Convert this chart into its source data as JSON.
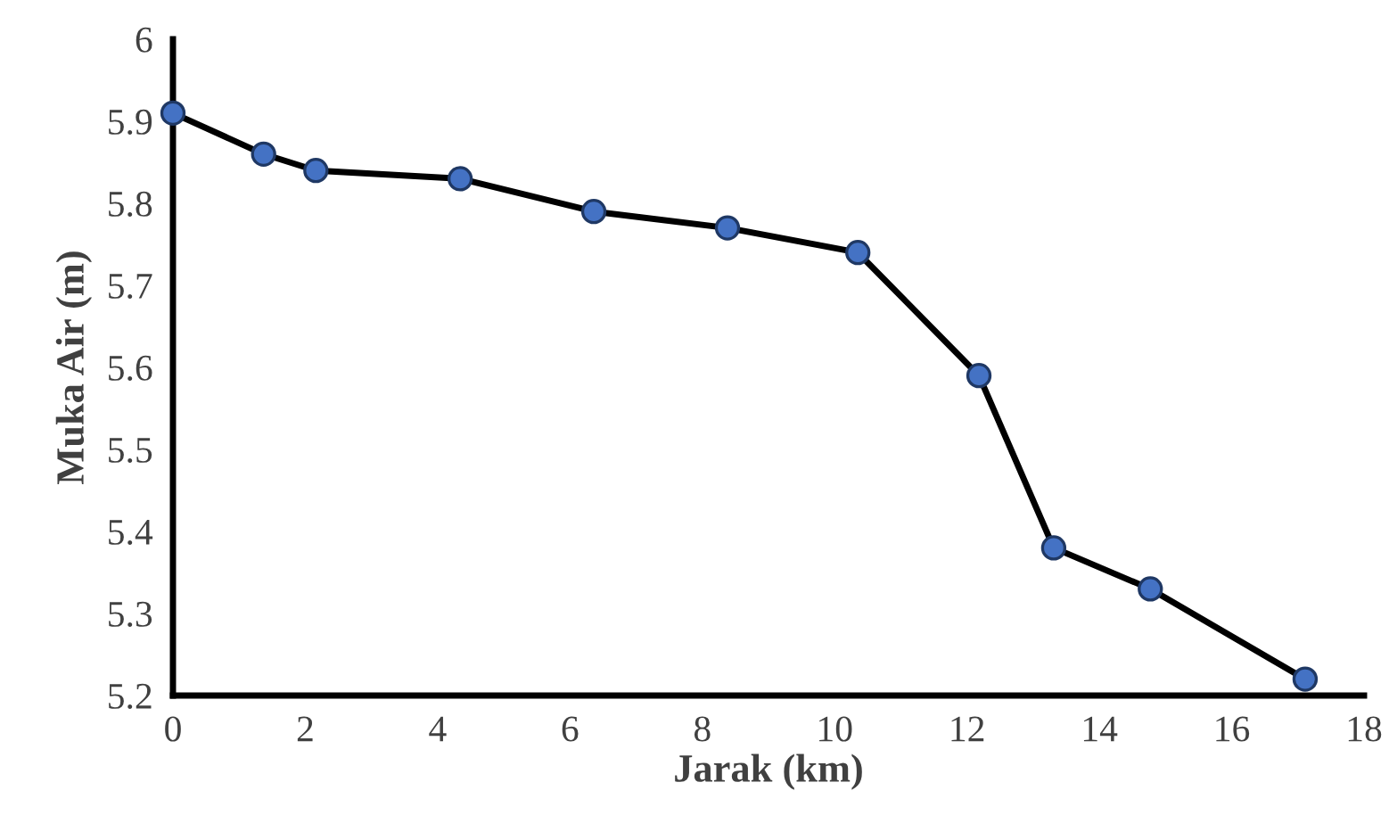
{
  "chart_data": {
    "type": "line",
    "xlabel": "Jarak (km)",
    "ylabel": "Muka Air (m)",
    "x": [
      0,
      1.37,
      2.16,
      4.34,
      6.36,
      8.38,
      10.35,
      12.18,
      13.31,
      14.77,
      17.11
    ],
    "series": [
      {
        "color": "#4472c4",
        "values": [
          5.91,
          5.86,
          5.84,
          5.83,
          5.79,
          5.77,
          5.74,
          5.59,
          5.38,
          5.33,
          5.22
        ]
      }
    ],
    "xlim": [
      0,
      18
    ],
    "xticks": [
      0,
      2,
      4,
      6,
      8,
      10,
      12,
      14,
      16,
      18
    ],
    "ylim": [
      5.2,
      6
    ],
    "yticks": [
      {
        "value": 5.2,
        "label": "5.2"
      },
      {
        "value": 5.3,
        "label": "5.3"
      },
      {
        "value": 5.4,
        "label": "5.4"
      },
      {
        "value": 5.5,
        "label": "5.5"
      },
      {
        "value": 5.6,
        "label": "5.6"
      },
      {
        "value": 5.7,
        "label": "5.7"
      },
      {
        "value": 5.8,
        "label": "5.8"
      },
      {
        "value": 5.9,
        "label": "5.9"
      },
      {
        "value": 6,
        "label": "6"
      }
    ],
    "grid": false,
    "legend": false,
    "marker": "circle",
    "line_style": "solid"
  }
}
